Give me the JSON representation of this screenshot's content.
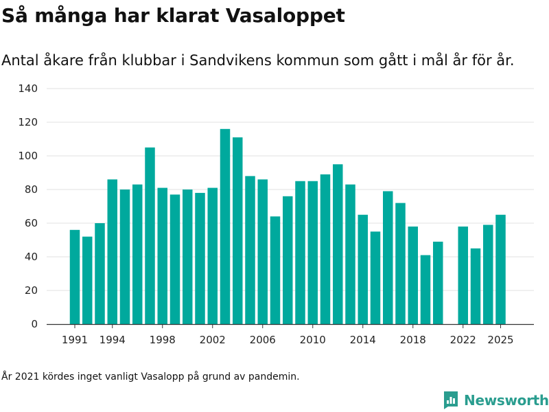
{
  "title": "Så många har klarat Vasaloppet",
  "subtitle": "Antal åkare från klubbar i Sandvikens kommun som gått i mål år för år.",
  "note": "År 2021 kördes inget vanligt Vasalopp på grund av pandemin.",
  "brand": {
    "name": "Newsworthy",
    "icon": "newsworthy-logo-icon",
    "color": "#2a9d8f"
  },
  "chart_data": {
    "type": "bar",
    "x": [
      1991,
      1992,
      1993,
      1994,
      1995,
      1996,
      1997,
      1998,
      1999,
      2000,
      2001,
      2002,
      2003,
      2004,
      2005,
      2006,
      2007,
      2008,
      2009,
      2010,
      2011,
      2012,
      2013,
      2014,
      2015,
      2016,
      2017,
      2018,
      2019,
      2020,
      2021,
      2022,
      2023,
      2024,
      2025
    ],
    "values": [
      56,
      52,
      60,
      86,
      80,
      83,
      105,
      81,
      77,
      80,
      78,
      81,
      116,
      111,
      88,
      86,
      64,
      76,
      85,
      85,
      89,
      95,
      83,
      65,
      55,
      79,
      72,
      58,
      41,
      49,
      null,
      58,
      45,
      59,
      65
    ],
    "x_tick_labels": [
      "1991",
      "1994",
      "1998",
      "2002",
      "2006",
      "2010",
      "2014",
      "2018",
      "2022",
      "2025"
    ],
    "y_ticks": [
      "0",
      "20",
      "40",
      "60",
      "80",
      "100",
      "120",
      "140"
    ],
    "ylim": [
      0,
      140
    ],
    "xlabel": "",
    "ylabel": "",
    "grid": "horizontal",
    "bar_color": "#00a99d",
    "grid_color": "#e2e2e2",
    "axis_color": "#333333"
  }
}
